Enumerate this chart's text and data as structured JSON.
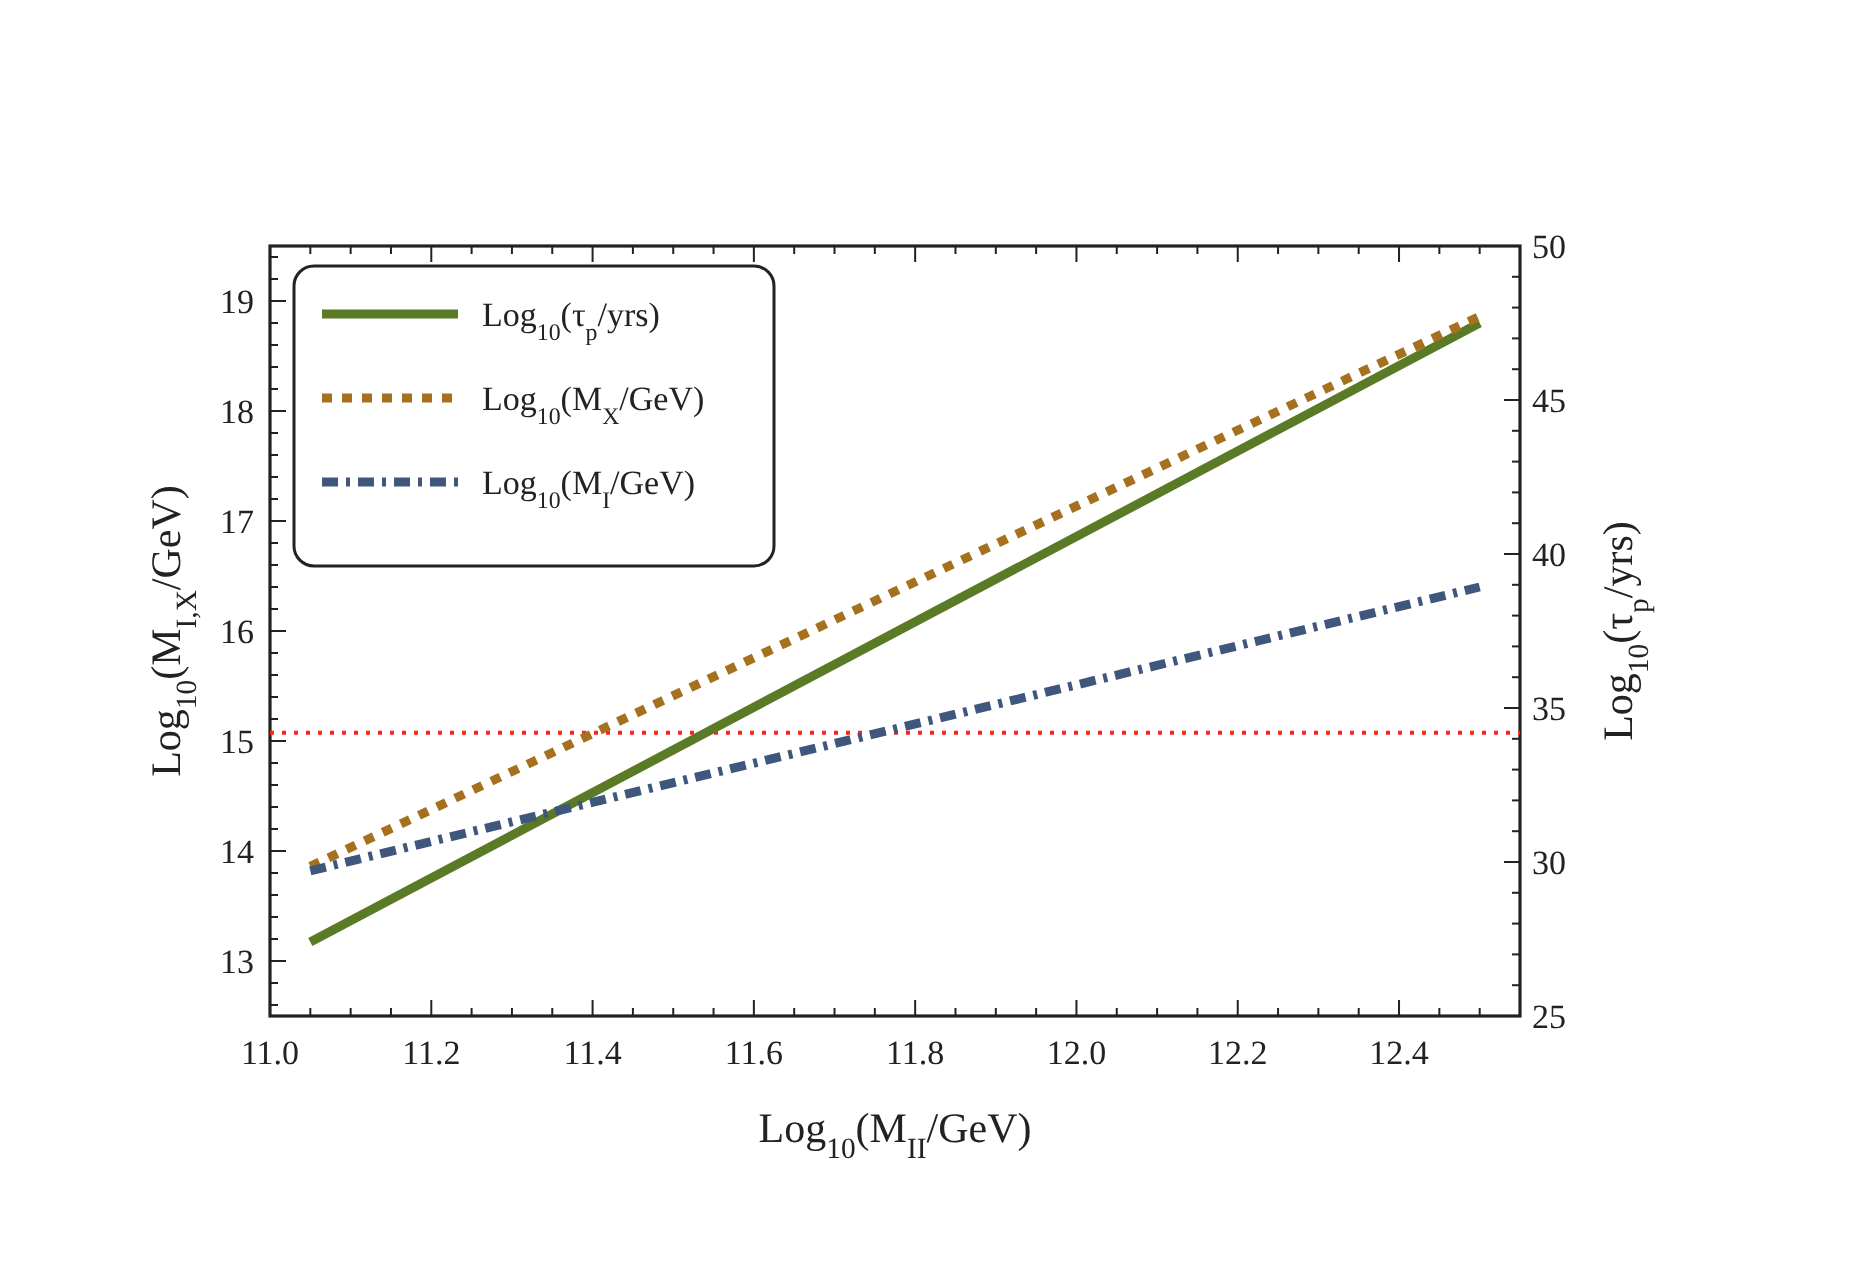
{
  "chart_data": {
    "type": "line",
    "xlabel": "Log$_{10}$(M$_{II}$/GeV)",
    "ylabel": "Log$_{10}$(M$_{I,X}$/GeV)",
    "y2label": "Log$_{10}$(τ$_{p}$/yrs)",
    "xlim": [
      11.0,
      12.55
    ],
    "xticks": [
      {
        "value": 11.0,
        "label": "11.0"
      },
      {
        "value": 11.2,
        "label": "11.2"
      },
      {
        "value": 11.4,
        "label": "11.4"
      },
      {
        "value": 11.6,
        "label": "11.6"
      },
      {
        "value": 11.8,
        "label": "11.8"
      },
      {
        "value": 12.0,
        "label": "12.0"
      },
      {
        "value": 12.2,
        "label": "12.2"
      },
      {
        "value": 12.4,
        "label": "12.4"
      },
      {
        "value": 11.05,
        "label": null
      },
      {
        "value": 11.1,
        "label": null
      },
      {
        "value": 11.15,
        "label": null
      },
      {
        "value": 11.25,
        "label": null
      },
      {
        "value": 11.3,
        "label": null
      },
      {
        "value": 11.35,
        "label": null
      },
      {
        "value": 11.45,
        "label": null
      },
      {
        "value": 11.5,
        "label": null
      },
      {
        "value": 11.55,
        "label": null
      },
      {
        "value": 11.65,
        "label": null
      },
      {
        "value": 11.7,
        "label": null
      },
      {
        "value": 11.75,
        "label": null
      },
      {
        "value": 11.85,
        "label": null
      },
      {
        "value": 11.9,
        "label": null
      },
      {
        "value": 11.95,
        "label": null
      },
      {
        "value": 12.05,
        "label": null
      },
      {
        "value": 12.1,
        "label": null
      },
      {
        "value": 12.15,
        "label": null
      },
      {
        "value": 12.25,
        "label": null
      },
      {
        "value": 12.3,
        "label": null
      },
      {
        "value": 12.35,
        "label": null
      },
      {
        "value": 12.45,
        "label": null
      },
      {
        "value": 12.5,
        "label": null
      }
    ],
    "ylim": [
      12.5,
      19.5
    ],
    "yticks": [
      13,
      14,
      15,
      16,
      17,
      18,
      19,
      {
        "value": 12.6,
        "label": null
      },
      {
        "value": 12.8,
        "label": null
      },
      {
        "value": 13.2,
        "label": null
      },
      {
        "value": 13.4,
        "label": null
      },
      {
        "value": 13.6,
        "label": null
      },
      {
        "value": 13.8,
        "label": null
      },
      {
        "value": 14.2,
        "label": null
      },
      {
        "value": 14.4,
        "label": null
      },
      {
        "value": 14.6,
        "label": null
      },
      {
        "value": 14.8,
        "label": null
      },
      {
        "value": 15.2,
        "label": null
      },
      {
        "value": 15.4,
        "label": null
      },
      {
        "value": 15.6,
        "label": null
      },
      {
        "value": 15.8,
        "label": null
      },
      {
        "value": 16.2,
        "label": null
      },
      {
        "value": 16.4,
        "label": null
      },
      {
        "value": 16.6,
        "label": null
      },
      {
        "value": 16.8,
        "label": null
      },
      {
        "value": 17.2,
        "label": null
      },
      {
        "value": 17.4,
        "label": null
      },
      {
        "value": 17.6,
        "label": null
      },
      {
        "value": 17.8,
        "label": null
      },
      {
        "value": 18.2,
        "label": null
      },
      {
        "value": 18.4,
        "label": null
      },
      {
        "value": 18.6,
        "label": null
      },
      {
        "value": 18.8,
        "label": null
      },
      {
        "value": 19.2,
        "label": null
      },
      {
        "value": 19.4,
        "label": null
      }
    ],
    "y2lim": [
      25,
      50
    ],
    "y2ticks": [
      25,
      30,
      35,
      40,
      45,
      50,
      {
        "value": 26,
        "label": null
      },
      {
        "value": 27,
        "label": null
      },
      {
        "value": 28,
        "label": null
      },
      {
        "value": 29,
        "label": null
      },
      {
        "value": 31,
        "label": null
      },
      {
        "value": 32,
        "label": null
      },
      {
        "value": 33,
        "label": null
      },
      {
        "value": 34,
        "label": null
      },
      {
        "value": 36,
        "label": null
      },
      {
        "value": 37,
        "label": null
      },
      {
        "value": 38,
        "label": null
      },
      {
        "value": 39,
        "label": null
      },
      {
        "value": 41,
        "label": null
      },
      {
        "value": 42,
        "label": null
      },
      {
        "value": 43,
        "label": null
      },
      {
        "value": 44,
        "label": null
      },
      {
        "value": 46,
        "label": null
      },
      {
        "value": 47,
        "label": null
      },
      {
        "value": 48,
        "label": null
      },
      {
        "value": 49,
        "label": null
      }
    ],
    "legend": "top left",
    "x": [
      11.05,
      12.5
    ],
    "series": [
      {
        "name": "Log$_{10}$(τ$_{p}$/yrs)",
        "color": "#5b7a25",
        "axis": "y2",
        "line_style": "solid",
        "values": [
          27.4,
          47.5
        ]
      },
      {
        "name": "Log$_{10}$(M$_{X}$/GeV)",
        "color": "#a6711f",
        "line_style": "dotted",
        "values": [
          13.86,
          18.86
        ]
      },
      {
        "name": "Log$_{10}$(M$_{I}$/GeV)",
        "color": "#3f577c",
        "line_style": "dashdot",
        "values": [
          13.82,
          16.4
        ]
      }
    ],
    "ref_lines": [
      {
        "axis": "y2",
        "value": 34.2,
        "color": "#ff2020",
        "line_style": "dotted"
      }
    ]
  }
}
